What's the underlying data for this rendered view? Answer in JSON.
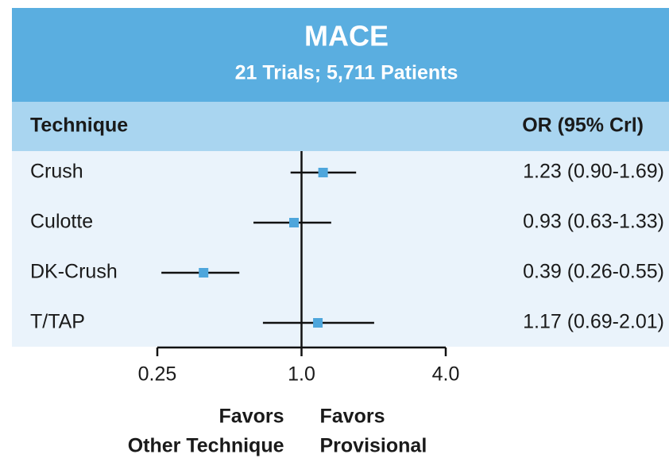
{
  "chart_data": {
    "type": "forest",
    "title": "MACE",
    "subtitle": "21 Trials; 5,711 Patients",
    "label_header": "Technique",
    "value_header": "OR (95% Crl)",
    "categories": [
      "Crush",
      "Culotte",
      "DK-Crush",
      "T/TAP"
    ],
    "values": [
      1.23,
      0.93,
      0.39,
      1.17
    ],
    "lower": [
      0.9,
      0.63,
      0.26,
      0.69
    ],
    "upper": [
      1.69,
      1.33,
      0.55,
      2.01
    ],
    "value_labels": [
      "1.23 (0.90-1.69)",
      "0.93 (0.63-1.33)",
      "0.39 (0.26-0.55)",
      "1.17 (0.69-2.01)"
    ],
    "xlim": [
      0.25,
      4
    ],
    "xticks": [
      0.25,
      {
        "value": 1,
        "label": "1.0"
      },
      {
        "value": 4,
        "label": "4.0"
      }
    ],
    "log_scale": true,
    "reference_line": 1,
    "favors_left": [
      "Favors",
      "Other Technique"
    ],
    "favors_right": [
      "Favors",
      "Provisional"
    ],
    "color": "#4ea6dc"
  }
}
